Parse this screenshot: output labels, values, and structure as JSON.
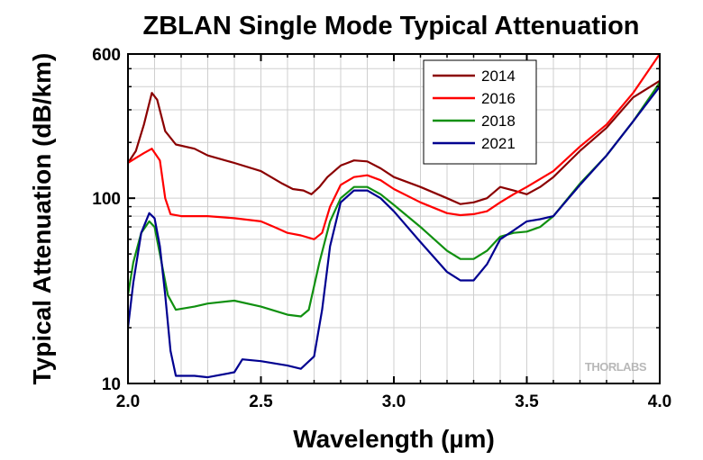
{
  "chart_data": {
    "type": "line",
    "title": "ZBLAN Single Mode Typical Attenuation",
    "xlabel": "Wavelength (µm)",
    "ylabel": "Typical Attenuation (dB/km)",
    "xlim": [
      2.0,
      4.0
    ],
    "ylim": [
      10,
      600
    ],
    "yscale": "log",
    "grid": true,
    "legend_position": "top-center",
    "x_ticks": [
      "2.0",
      "2.5",
      "3.0",
      "3.5",
      "4.0"
    ],
    "y_ticks": [
      "10",
      "100",
      "600"
    ],
    "watermark": "THORLABS",
    "series": [
      {
        "name": "2014",
        "color": "#8b0000",
        "points": [
          [
            2.0,
            155
          ],
          [
            2.03,
            180
          ],
          [
            2.06,
            250
          ],
          [
            2.09,
            370
          ],
          [
            2.11,
            340
          ],
          [
            2.14,
            230
          ],
          [
            2.18,
            195
          ],
          [
            2.25,
            185
          ],
          [
            2.3,
            170
          ],
          [
            2.4,
            155
          ],
          [
            2.5,
            140
          ],
          [
            2.58,
            120
          ],
          [
            2.62,
            112
          ],
          [
            2.66,
            110
          ],
          [
            2.69,
            105
          ],
          [
            2.72,
            115
          ],
          [
            2.75,
            130
          ],
          [
            2.8,
            150
          ],
          [
            2.85,
            160
          ],
          [
            2.9,
            158
          ],
          [
            2.95,
            145
          ],
          [
            3.0,
            130
          ],
          [
            3.1,
            115
          ],
          [
            3.2,
            100
          ],
          [
            3.25,
            93
          ],
          [
            3.3,
            95
          ],
          [
            3.35,
            100
          ],
          [
            3.4,
            115
          ],
          [
            3.45,
            110
          ],
          [
            3.5,
            105
          ],
          [
            3.55,
            115
          ],
          [
            3.6,
            130
          ],
          [
            3.7,
            180
          ],
          [
            3.8,
            240
          ],
          [
            3.9,
            350
          ],
          [
            4.0,
            430
          ]
        ]
      },
      {
        "name": "2016",
        "color": "#ff0000",
        "points": [
          [
            2.0,
            155
          ],
          [
            2.03,
            165
          ],
          [
            2.06,
            175
          ],
          [
            2.09,
            185
          ],
          [
            2.12,
            160
          ],
          [
            2.14,
            100
          ],
          [
            2.16,
            82
          ],
          [
            2.2,
            80
          ],
          [
            2.3,
            80
          ],
          [
            2.4,
            78
          ],
          [
            2.5,
            75
          ],
          [
            2.55,
            70
          ],
          [
            2.6,
            65
          ],
          [
            2.65,
            63
          ],
          [
            2.7,
            60
          ],
          [
            2.73,
            65
          ],
          [
            2.76,
            90
          ],
          [
            2.8,
            118
          ],
          [
            2.85,
            130
          ],
          [
            2.9,
            133
          ],
          [
            2.95,
            125
          ],
          [
            3.0,
            112
          ],
          [
            3.1,
            95
          ],
          [
            3.2,
            83
          ],
          [
            3.25,
            81
          ],
          [
            3.3,
            82
          ],
          [
            3.35,
            85
          ],
          [
            3.4,
            95
          ],
          [
            3.45,
            105
          ],
          [
            3.5,
            115
          ],
          [
            3.6,
            140
          ],
          [
            3.7,
            190
          ],
          [
            3.8,
            250
          ],
          [
            3.9,
            370
          ],
          [
            4.0,
            600
          ]
        ]
      },
      {
        "name": "2018",
        "color": "#109010",
        "points": [
          [
            2.0,
            30
          ],
          [
            2.02,
            45
          ],
          [
            2.05,
            65
          ],
          [
            2.08,
            75
          ],
          [
            2.1,
            70
          ],
          [
            2.12,
            50
          ],
          [
            2.15,
            30
          ],
          [
            2.18,
            25
          ],
          [
            2.25,
            26
          ],
          [
            2.3,
            27
          ],
          [
            2.4,
            28
          ],
          [
            2.5,
            26
          ],
          [
            2.6,
            23.5
          ],
          [
            2.65,
            23
          ],
          [
            2.68,
            25
          ],
          [
            2.72,
            45
          ],
          [
            2.76,
            75
          ],
          [
            2.8,
            100
          ],
          [
            2.85,
            115
          ],
          [
            2.9,
            115
          ],
          [
            2.95,
            105
          ],
          [
            3.0,
            92
          ],
          [
            3.1,
            70
          ],
          [
            3.2,
            52
          ],
          [
            3.25,
            47
          ],
          [
            3.3,
            47
          ],
          [
            3.35,
            52
          ],
          [
            3.4,
            62
          ],
          [
            3.45,
            65
          ],
          [
            3.5,
            66
          ],
          [
            3.55,
            70
          ],
          [
            3.6,
            80
          ],
          [
            3.7,
            120
          ],
          [
            3.8,
            170
          ],
          [
            3.9,
            260
          ],
          [
            4.0,
            420
          ]
        ]
      },
      {
        "name": "2021",
        "color": "#000090",
        "points": [
          [
            2.0,
            20
          ],
          [
            2.02,
            35
          ],
          [
            2.05,
            65
          ],
          [
            2.08,
            83
          ],
          [
            2.1,
            78
          ],
          [
            2.12,
            55
          ],
          [
            2.14,
            30
          ],
          [
            2.16,
            15
          ],
          [
            2.18,
            11
          ],
          [
            2.25,
            11
          ],
          [
            2.3,
            10.8
          ],
          [
            2.4,
            11.5
          ],
          [
            2.43,
            13.5
          ],
          [
            2.5,
            13.2
          ],
          [
            2.6,
            12.5
          ],
          [
            2.65,
            12
          ],
          [
            2.7,
            14
          ],
          [
            2.73,
            25
          ],
          [
            2.76,
            55
          ],
          [
            2.8,
            95
          ],
          [
            2.85,
            110
          ],
          [
            2.9,
            110
          ],
          [
            2.95,
            100
          ],
          [
            3.0,
            85
          ],
          [
            3.1,
            58
          ],
          [
            3.2,
            40
          ],
          [
            3.25,
            36
          ],
          [
            3.3,
            36
          ],
          [
            3.35,
            44
          ],
          [
            3.4,
            60
          ],
          [
            3.45,
            67
          ],
          [
            3.5,
            75
          ],
          [
            3.55,
            77
          ],
          [
            3.6,
            80
          ],
          [
            3.7,
            118
          ],
          [
            3.8,
            170
          ],
          [
            3.9,
            260
          ],
          [
            4.0,
            400
          ]
        ]
      }
    ]
  }
}
